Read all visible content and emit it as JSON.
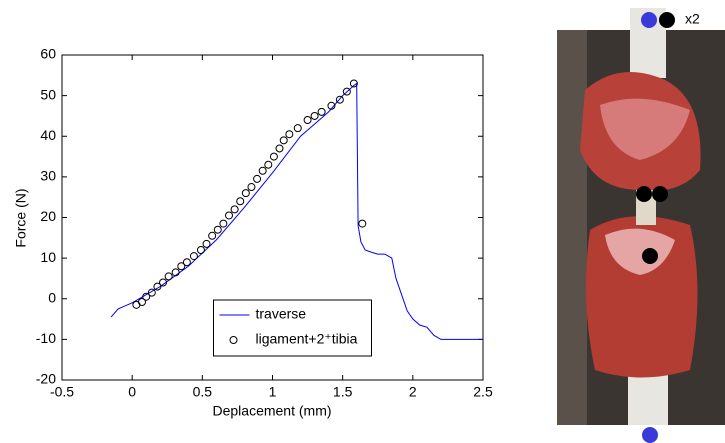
{
  "chart_data": {
    "type": "line",
    "xlabel": "Deplacement (mm)",
    "ylabel": "Force (N)",
    "xlim": [
      -0.5,
      2.5
    ],
    "ylim": [
      -20,
      60
    ],
    "xticks": [
      -0.5,
      0,
      0.5,
      1,
      1.5,
      2,
      2.5
    ],
    "yticks": [
      -20,
      -10,
      0,
      10,
      20,
      30,
      40,
      50,
      60
    ],
    "grid": false,
    "legend": "lower center",
    "series": [
      {
        "name": "traverse",
        "color": "#0000ff",
        "type": "line",
        "x": [
          -0.15,
          -0.1,
          0,
          0.2,
          0.4,
          0.6,
          0.8,
          1.0,
          1.2,
          1.4,
          1.5,
          1.58,
          1.6,
          1.61,
          1.63,
          1.66,
          1.7,
          1.75,
          1.8,
          1.85,
          1.88,
          1.92,
          1.96,
          2.0,
          2.05,
          2.1,
          2.15,
          2.2,
          2.5
        ],
        "values": [
          -4.5,
          -2.5,
          -1,
          3,
          8,
          14.5,
          22.5,
          31,
          40,
          46,
          50,
          52.5,
          53,
          18,
          14,
          12,
          11.5,
          11,
          11,
          10,
          5,
          1,
          -3,
          -5,
          -6.5,
          -7,
          -9,
          -10,
          -10
        ]
      },
      {
        "name": "ligament+2⁺tibia",
        "color": "#000000",
        "type": "scatter",
        "x": [
          0.03,
          0.07,
          0.1,
          0.14,
          0.18,
          0.22,
          0.26,
          0.31,
          0.35,
          0.39,
          0.44,
          0.49,
          0.53,
          0.57,
          0.61,
          0.65,
          0.69,
          0.73,
          0.77,
          0.81,
          0.85,
          0.89,
          0.93,
          0.97,
          1.01,
          1.05,
          1.08,
          1.12,
          1.18,
          1.25,
          1.3,
          1.35,
          1.42,
          1.48,
          1.53,
          1.58,
          1.64
        ],
        "values": [
          -1.5,
          -0.8,
          0.5,
          1.5,
          3,
          4,
          5.5,
          6.5,
          8,
          9,
          10.5,
          12,
          13.5,
          15.5,
          17,
          18.5,
          20.5,
          22,
          24,
          26,
          27.5,
          29.5,
          31.5,
          33,
          35,
          37,
          39,
          40.5,
          42,
          44,
          45,
          46,
          47.5,
          49,
          51,
          53,
          18.5
        ]
      }
    ]
  },
  "photo": {
    "label": "x2"
  }
}
